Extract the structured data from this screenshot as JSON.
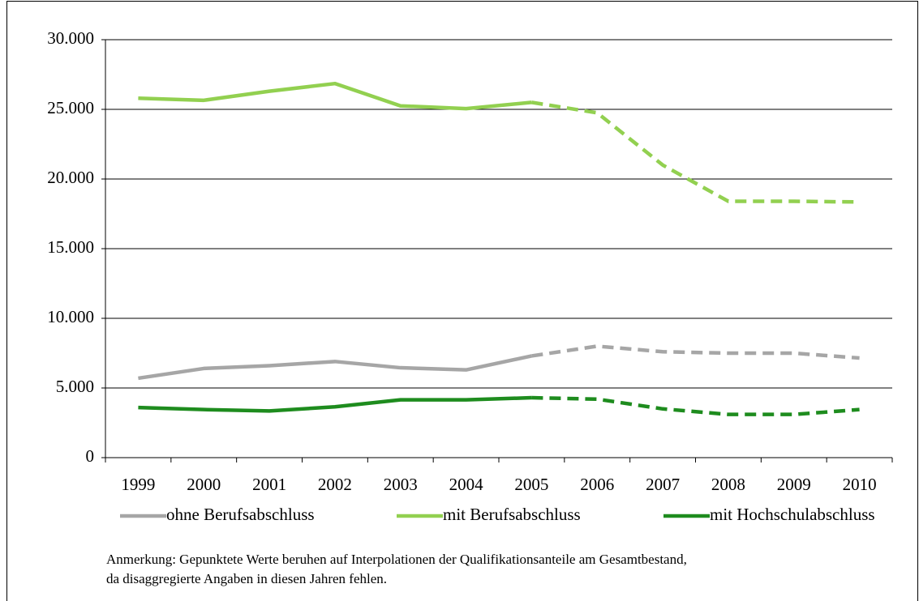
{
  "chart_data": {
    "type": "line",
    "categories": [
      "1999",
      "2000",
      "2001",
      "2002",
      "2003",
      "2004",
      "2005",
      "2006",
      "2007",
      "2008",
      "2009",
      "2010"
    ],
    "series": [
      {
        "name": "ohne Berufsabschluss",
        "color": "#a6a6a6",
        "values": [
          5700,
          6400,
          6600,
          6900,
          6450,
          6300,
          7300,
          8000,
          7600,
          7500,
          7500,
          7150
        ]
      },
      {
        "name": "mit Berufsabschluss",
        "color": "#92d050",
        "values": [
          25800,
          25650,
          26300,
          26850,
          25250,
          25050,
          25500,
          24750,
          21000,
          18400,
          18400,
          18350
        ]
      },
      {
        "name": "mit Hochschulabschluss",
        "color": "#1e8c1e",
        "values": [
          3600,
          3450,
          3350,
          3650,
          4150,
          4150,
          4300,
          4200,
          3500,
          3100,
          3100,
          3450
        ]
      }
    ],
    "dashed_from": "2005",
    "ylim": [
      0,
      30000
    ],
    "yticks": [
      0,
      {
        "value": 5000,
        "label": "5.000"
      },
      {
        "value": 10000,
        "label": "10.000"
      },
      {
        "value": 15000,
        "label": "15.000"
      },
      {
        "value": 20000,
        "label": "20.000"
      },
      {
        "value": 25000,
        "label": "25.000"
      },
      {
        "value": 30000,
        "label": "30.000"
      }
    ],
    "grid": true,
    "note": [
      "Anmerkung: Gepunktete Werte beruhen auf Interpolationen der Qualifikationsanteile am Gesamtbestand,",
      "da disaggregierte Angaben in diesen Jahren fehlen."
    ]
  }
}
